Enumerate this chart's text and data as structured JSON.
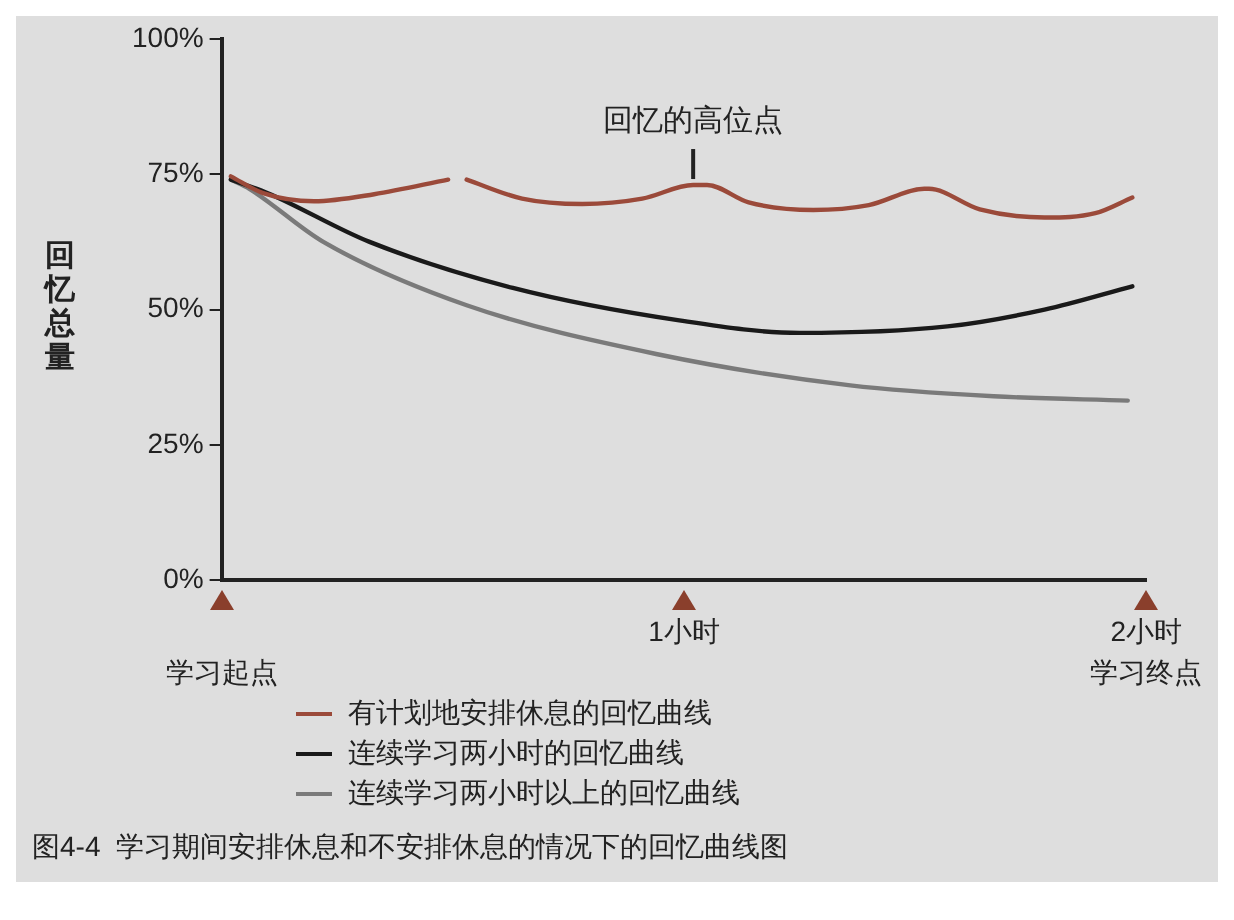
{
  "chart_data": {
    "type": "line",
    "ylabel": "回忆总量",
    "xlim": [
      0,
      2
    ],
    "xticks": [
      {
        "value": 0,
        "label": null
      },
      {
        "value": 1,
        "label": "1小时"
      },
      {
        "value": 2,
        "label": "2小时"
      }
    ],
    "ylim": [
      0,
      100
    ],
    "yticks": [
      {
        "value": 0,
        "label": "0%"
      },
      {
        "value": 25,
        "label": "25%"
      },
      {
        "value": 50,
        "label": "50%"
      },
      {
        "value": 75,
        "label": "75%"
      },
      {
        "value": 100,
        "label": "100%"
      }
    ],
    "grid": false,
    "legend": "bottom",
    "marker": "none",
    "series": [
      {
        "name": "有计划地安排休息的回忆曲线",
        "color": "#9b4a3a",
        "x": [
          0.02,
          0.09,
          0.2,
          0.33,
          0.49,
          0.51,
          0.53,
          0.65,
          0.78,
          0.91,
          1.02,
          1.05,
          1.14,
          1.28,
          1.4,
          1.52,
          1.53,
          1.64,
          1.78,
          1.89,
          1.97
        ],
        "values": [
          74.6,
          71.5,
          70,
          71.3,
          74,
          null,
          74,
          70.5,
          69.5,
          70.5,
          73,
          73,
          69.8,
          68.4,
          69.3,
          72.3,
          72.3,
          68.5,
          67,
          67.8,
          70.7
        ]
      },
      {
        "name": "连续学习两小时的回忆曲线",
        "color": "#1a1a1a",
        "x": [
          0.02,
          0.1,
          0.32,
          0.63,
          0.99,
          1.25,
          1.57,
          1.78,
          1.97
        ],
        "values": [
          74,
          71.5,
          62.5,
          54,
          48,
          45.7,
          46.9,
          50,
          54.3
        ]
      },
      {
        "name": "连续学习两小时以上的回忆曲线",
        "color": "#7a7a7a",
        "x": [
          0.02,
          0.06,
          0.22,
          0.53,
          0.94,
          1.36,
          1.67,
          1.96
        ],
        "values": [
          74,
          72.3,
          62.5,
          50.8,
          41.8,
          36,
          34,
          33.2
        ]
      }
    ],
    "annotations": [
      {
        "text": "回忆的高位点",
        "x": 1.02,
        "y": 73
      },
      "学习起点",
      "学习终点",
      "图4-4  学习期间安排休息和不安排休息的情况下的回忆曲线图"
    ]
  }
}
